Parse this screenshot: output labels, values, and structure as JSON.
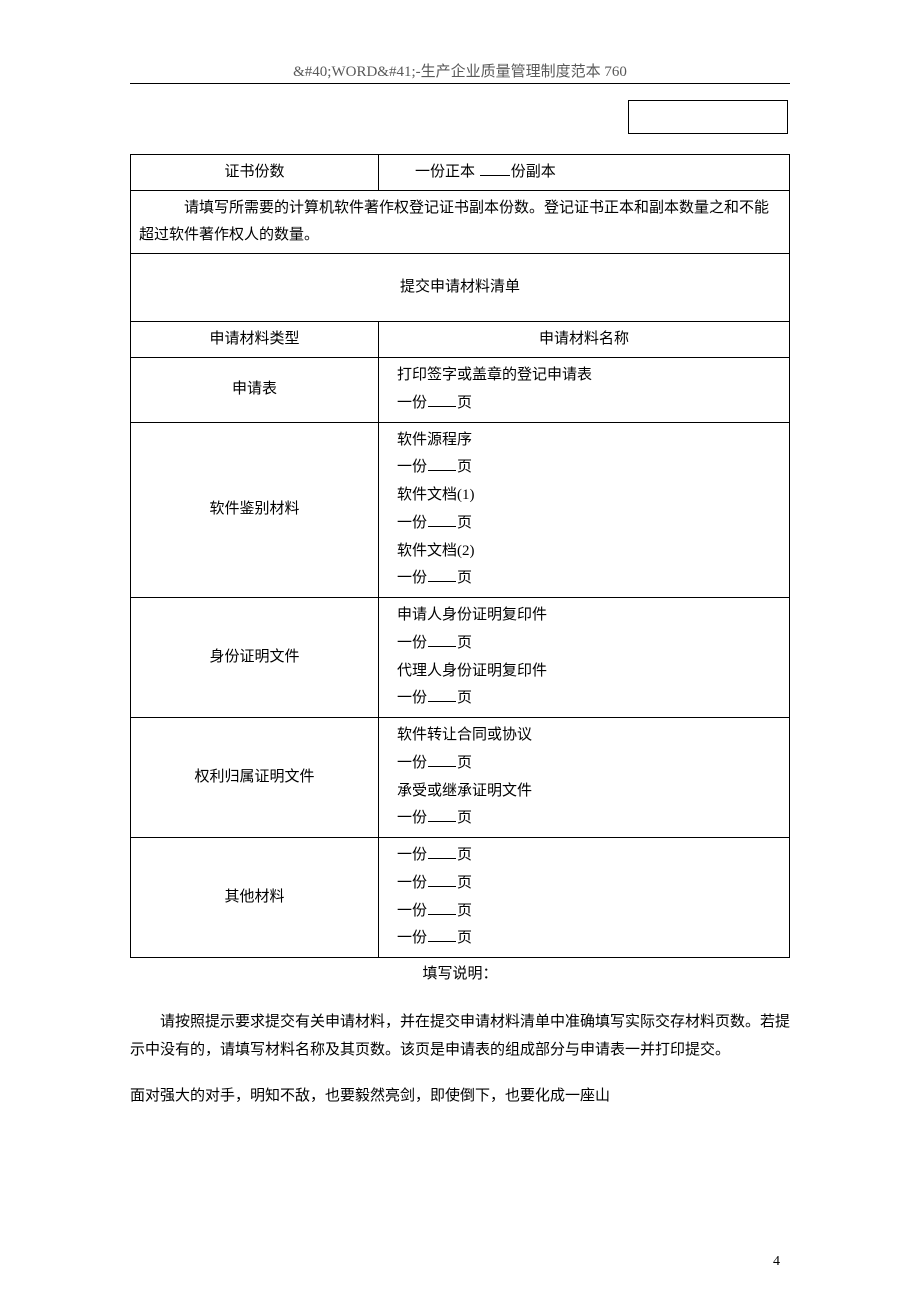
{
  "header": "&#40;WORD&#41;-生产企业质量管理制度范本 760",
  "row_cert_label": "证书份数",
  "row_cert_value_prefix": "一份正本  ",
  "row_cert_value_suffix": "份副本",
  "note_line": "请填写所需要的计算机软件著作权登记证书副本份数。登记证书正本和副本数量之和不能超过软件著作权人的数量。",
  "section_title": "提交申请材料清单",
  "col_type": "申请材料类型",
  "col_name": "申请材料名称",
  "rows": [
    {
      "type": "申请表",
      "items": [
        "打印签字或盖章的登记申请表",
        "一份____页"
      ]
    },
    {
      "type": "软件鉴别材料",
      "items": [
        "软件源程序",
        "一份____页",
        "软件文档(1)",
        "一份____页",
        "软件文档(2)",
        "一份____页"
      ]
    },
    {
      "type": "身份证明文件",
      "items": [
        "申请人身份证明复印件",
        "一份____页",
        "代理人身份证明复印件",
        "一份____页"
      ]
    },
    {
      "type": "权利归属证明文件",
      "items": [
        "软件转让合同或协议",
        "一份____页",
        "承受或继承证明文件",
        "一份____页"
      ]
    },
    {
      "type": "其他材料",
      "items": [
        "一份____页",
        "一份____页",
        "一份____页",
        "一份____页"
      ]
    }
  ],
  "caption": "填写说明：",
  "paragraph": "请按照提示要求提交有关申请材料，并在提交申请材料清单中准确填写实际交存材料页数。若提示中没有的，请填写材料名称及其页数。该页是申请表的组成部分与申请表一并打印提交。",
  "quote": "面对强大的对手，明知不敌，也要毅然亮剑，即使倒下，也要化成一座山",
  "page_number": "4"
}
